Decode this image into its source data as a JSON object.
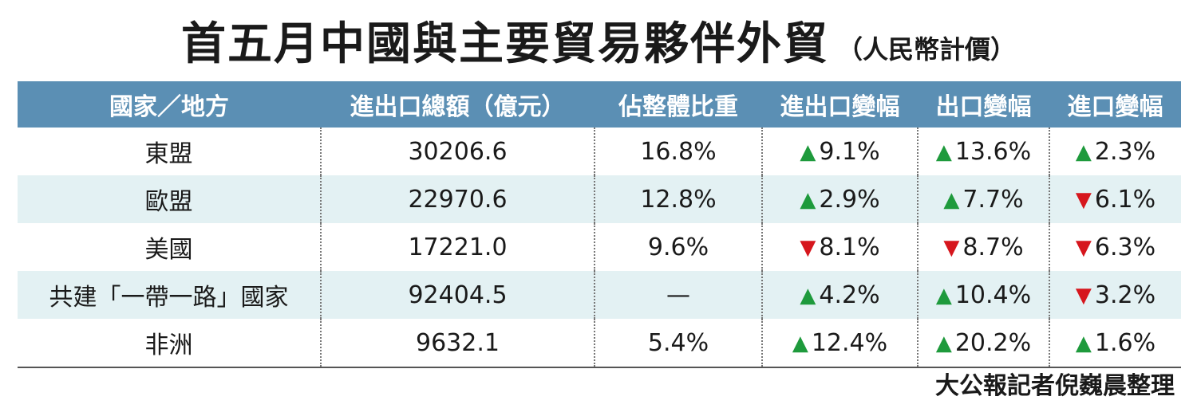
{
  "title": "首五月中國與主要貿易夥伴外貿",
  "subtitle": "（人民幣計價）",
  "headers": [
    "國家／地方",
    "進出口總額（億元）",
    "佔整體比重",
    "進出口變幅",
    "出口變幅",
    "進口變幅"
  ],
  "rows": [
    {
      "region": "東盟",
      "total": "30206.6",
      "share": "16.8%",
      "trade": {
        "dir": "up",
        "arrow": "▲",
        "value": "9.1%"
      },
      "export": {
        "dir": "up",
        "arrow": "▲",
        "value": "13.6%"
      },
      "import": {
        "dir": "up",
        "arrow": "▲",
        "value": "2.3%"
      }
    },
    {
      "region": "歐盟",
      "total": "22970.6",
      "share": "12.8%",
      "trade": {
        "dir": "up",
        "arrow": "▲",
        "value": "2.9%"
      },
      "export": {
        "dir": "up",
        "arrow": "▲",
        "value": "7.7%"
      },
      "import": {
        "dir": "down",
        "arrow": "▼",
        "value": "6.1%"
      }
    },
    {
      "region": "美國",
      "total": "17221.0",
      "share": "9.6%",
      "trade": {
        "dir": "down",
        "arrow": "▼",
        "value": "8.1%"
      },
      "export": {
        "dir": "down",
        "arrow": "▼",
        "value": "8.7%"
      },
      "import": {
        "dir": "down",
        "arrow": "▼",
        "value": "6.3%"
      }
    },
    {
      "region": "共建「一帶一路」國家",
      "total": "92404.5",
      "share": "—",
      "trade": {
        "dir": "up",
        "arrow": "▲",
        "value": "4.2%"
      },
      "export": {
        "dir": "up",
        "arrow": "▲",
        "value": "10.4%"
      },
      "import": {
        "dir": "down",
        "arrow": "▼",
        "value": "3.2%"
      }
    },
    {
      "region": "非洲",
      "total": "9632.1",
      "share": "5.4%",
      "trade": {
        "dir": "up",
        "arrow": "▲",
        "value": "12.4%"
      },
      "export": {
        "dir": "up",
        "arrow": "▲",
        "value": "20.2%"
      },
      "import": {
        "dir": "up",
        "arrow": "▲",
        "value": "1.6%"
      }
    }
  ],
  "credit": "大公報記者倪巍晨整理",
  "colors": {
    "header_bg": "#5b8fb4",
    "row_alt_bg": "#e3f1f3",
    "up": "#1e9a3c",
    "down": "#d6161d"
  }
}
